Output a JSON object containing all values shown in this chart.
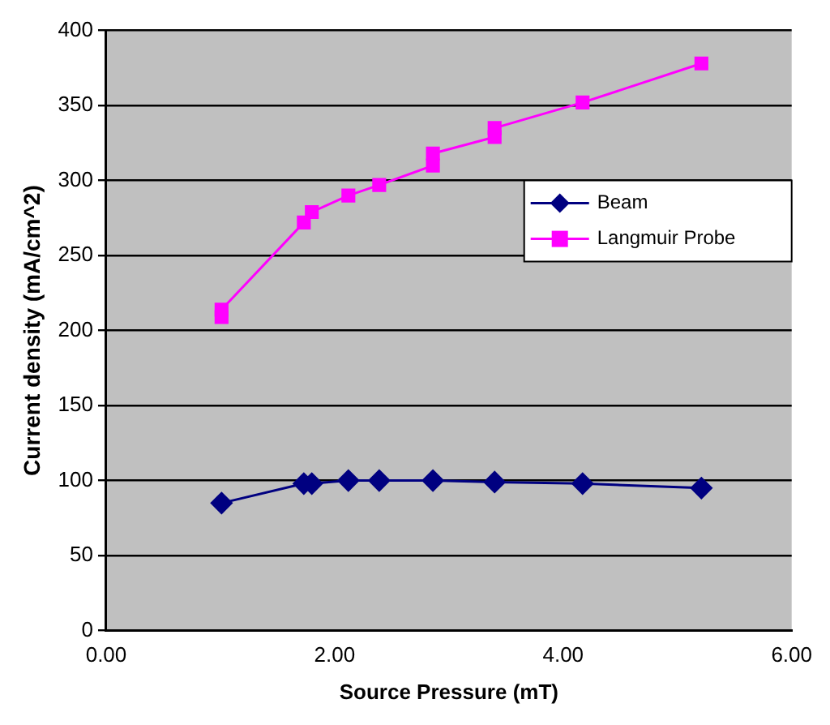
{
  "chart_data": {
    "type": "line",
    "xlabel": "Source Pressure (mT)",
    "ylabel": "Current density (mA/cm^2)",
    "xlim": [
      0,
      6
    ],
    "ylim": [
      0,
      400
    ],
    "xticks": [
      {
        "value": 0,
        "label": "0.00"
      },
      {
        "value": 2,
        "label": "2.00"
      },
      {
        "value": 4,
        "label": "4.00"
      },
      {
        "value": 6,
        "label": "6.00"
      }
    ],
    "yticks": [
      0,
      50,
      100,
      150,
      200,
      250,
      300,
      350,
      400
    ],
    "grid": "y",
    "legend": "right",
    "line_style": "solid",
    "series": [
      {
        "name": "Beam",
        "color": "#000080",
        "marker": "diamond",
        "x": [
          1.01,
          1.73,
          1.8,
          2.12,
          2.39,
          2.86,
          3.4,
          4.17,
          5.21
        ],
        "values": [
          85,
          98,
          98,
          100,
          100,
          100,
          99,
          98,
          95
        ]
      },
      {
        "name": "Langmuir Probe",
        "color": "#ff00ff",
        "marker": "square",
        "x": [
          1.01,
          1.01,
          1.73,
          1.8,
          2.12,
          2.39,
          2.86,
          2.86,
          3.4,
          3.4,
          4.17,
          5.21
        ],
        "values": [
          209,
          214,
          272,
          279,
          290,
          297,
          310,
          318,
          329,
          335,
          352,
          378
        ]
      }
    ]
  }
}
